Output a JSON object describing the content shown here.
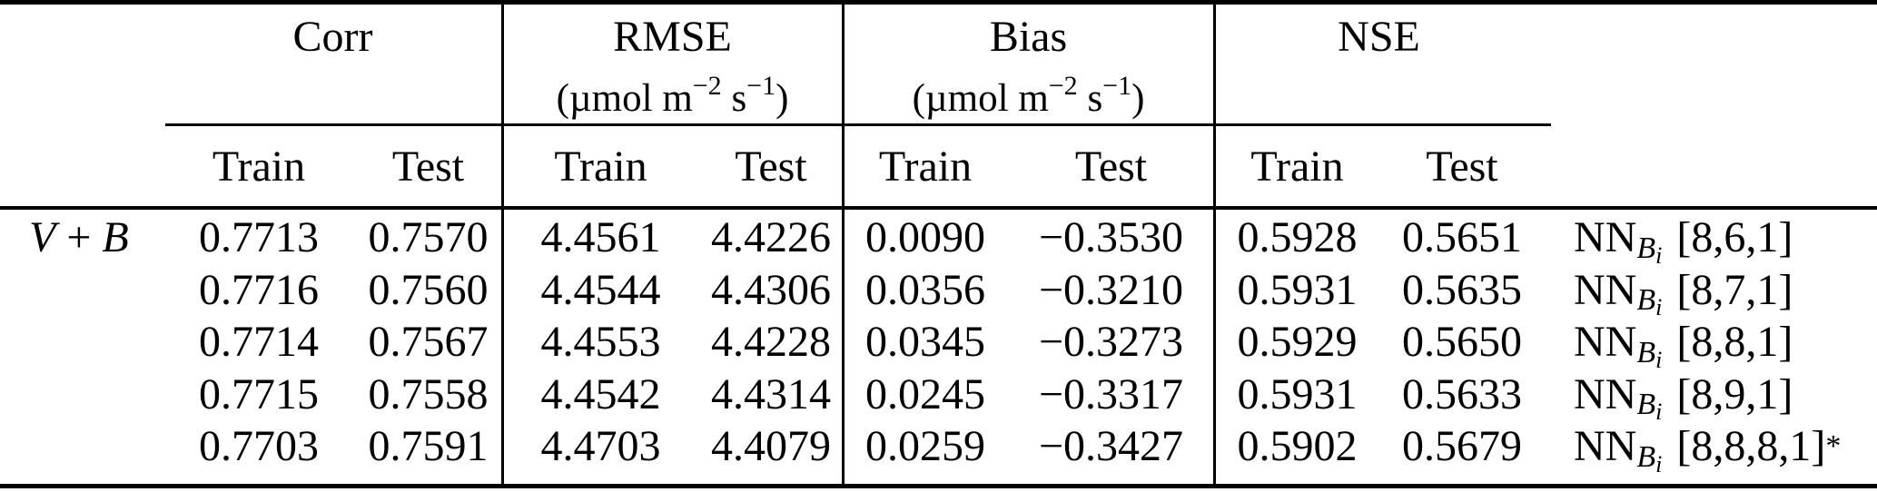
{
  "header": {
    "groups": {
      "corr": "Corr",
      "rmse": "RMSE",
      "bias": "Bias",
      "nse": "NSE"
    },
    "units": {
      "open": "(µmol m",
      "exp1": "−2",
      "sep": " s",
      "exp2": "−1",
      "close": ")"
    },
    "train": "Train",
    "test": "Test"
  },
  "row_label": {
    "v": "V",
    "op": "+",
    "b": "B"
  },
  "rows": [
    {
      "corr_train": "0.7713",
      "corr_test": "0.7570",
      "rmse_train": "4.4561",
      "rmse_test": "4.4226",
      "bias_train": "0.0090",
      "bias_test": "−0.3530",
      "nse_train": "0.5928",
      "nse_test": "0.5651",
      "model": {
        "nn": "NN",
        "sub_b": "B",
        "sub_i": "i",
        "arch": "[8,6,1]",
        "star": ""
      }
    },
    {
      "corr_train": "0.7716",
      "corr_test": "0.7560",
      "rmse_train": "4.4544",
      "rmse_test": "4.4306",
      "bias_train": "0.0356",
      "bias_test": "−0.3210",
      "nse_train": "0.5931",
      "nse_test": "0.5635",
      "model": {
        "nn": "NN",
        "sub_b": "B",
        "sub_i": "i",
        "arch": "[8,7,1]",
        "star": ""
      }
    },
    {
      "corr_train": "0.7714",
      "corr_test": "0.7567",
      "rmse_train": "4.4553",
      "rmse_test": "4.4228",
      "bias_train": "0.0345",
      "bias_test": "−0.3273",
      "nse_train": "0.5929",
      "nse_test": "0.5650",
      "model": {
        "nn": "NN",
        "sub_b": "B",
        "sub_i": "i",
        "arch": "[8,8,1]",
        "star": ""
      }
    },
    {
      "corr_train": "0.7715",
      "corr_test": "0.7558",
      "rmse_train": "4.4542",
      "rmse_test": "4.4314",
      "bias_train": "0.0245",
      "bias_test": "−0.3317",
      "nse_train": "0.5931",
      "nse_test": "0.5633",
      "model": {
        "nn": "NN",
        "sub_b": "B",
        "sub_i": "i",
        "arch": "[8,9,1]",
        "star": ""
      }
    },
    {
      "corr_train": "0.7703",
      "corr_test": "0.7591",
      "rmse_train": "4.4703",
      "rmse_test": "4.4079",
      "bias_train": "0.0259",
      "bias_test": "−0.3427",
      "nse_train": "0.5902",
      "nse_test": "0.5679",
      "model": {
        "nn": "NN",
        "sub_b": "B",
        "sub_i": "i",
        "arch": "[8,8,8,1]",
        "star": "*"
      }
    }
  ]
}
